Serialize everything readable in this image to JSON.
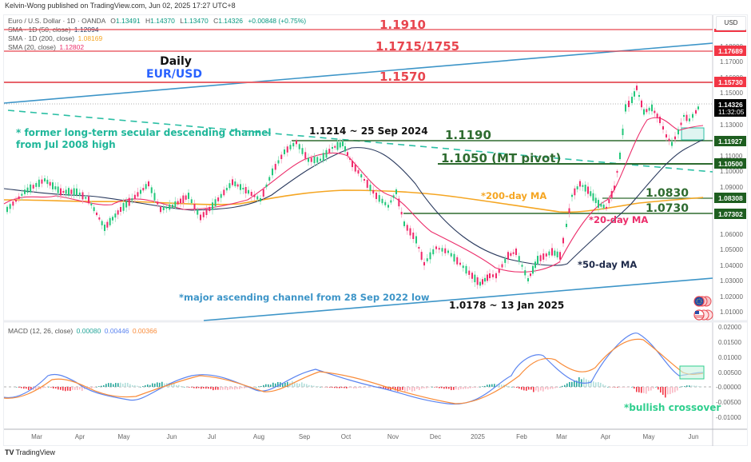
{
  "publisher": "Kelvin-Wong published on TradingView.com, Jun 02, 2025 17:27 UTC+8",
  "symbol": {
    "title": "Euro / U.S. Dollar · 1D · OANDA",
    "open_label": "O",
    "open": "1.13491",
    "high_label": "H",
    "high": "1.14370",
    "low_label": "L",
    "low": "1.13470",
    "close_label": "C",
    "close": "1.14326",
    "change": "+0.00848 (+0.75%)"
  },
  "indicators": [
    {
      "label": "SMA · 1D (50, close)",
      "value": "1.12094",
      "color": "#2a3a5e"
    },
    {
      "label": "SMA · 1D (200, close)",
      "value": "1.08169",
      "color": "#f5a623"
    },
    {
      "label": "SMA (20, close)",
      "value": "1.12802",
      "color": "#ec2e6b"
    }
  ],
  "macd_legend": {
    "label": "MACD (12, 26, close)",
    "hist": "0.00080",
    "macd": "0.00446",
    "signal": "0.00366"
  },
  "currency": "USD",
  "price_axis": [
    "1.18000",
    "1.17000",
    "1.16000",
    "1.15000",
    "1.13000",
    "1.11000",
    "1.10000",
    "1.09000",
    "1.06000",
    "1.05000",
    "1.04000",
    "1.03000",
    "1.02000",
    "1.01000"
  ],
  "price_tags": [
    {
      "value": "1.19100",
      "color": "#f23645"
    },
    {
      "value": "1.17689",
      "color": "#f23645"
    },
    {
      "value": "1.15730",
      "color": "#f23645"
    },
    {
      "value": "1.14326",
      "sub": "11:32:05",
      "color": "#000000"
    },
    {
      "value": "1.11927",
      "color": "#1e5e20"
    },
    {
      "value": "1.10500",
      "color": "#1e5e20"
    },
    {
      "value": "1.08308",
      "color": "#1e5e20"
    },
    {
      "value": "1.07302",
      "color": "#1e5e20"
    }
  ],
  "macd_axis": [
    "0.02000",
    "0.01500",
    "0.01000",
    "0.00500",
    "-0.00000",
    "-0.00500",
    "-0.01000"
  ],
  "time_axis": [
    "Mar",
    "Apr",
    "May",
    "Jun",
    "Jul",
    "Aug",
    "Sep",
    "Oct",
    "Nov",
    "Dec",
    "2025",
    "Feb",
    "Mar",
    "Apr",
    "May",
    "Jun"
  ],
  "annotations": {
    "timeframe": "Daily",
    "pair": "EUR/USD",
    "r1910": "1.1910",
    "r1715": "1.1715/1755",
    "r1570": "1.1570",
    "s1190": "1.1190",
    "s1050": "1.1050 (MT pivot)",
    "s0830": "1.0830",
    "s0730": "1.0730",
    "sep_high": "1.1214 ~ 25 Sep 2024",
    "jan_low": "1.0178 ~ 13 Jan 2025",
    "desc_channel_1": "* former long-term secular descending channel",
    "desc_channel_2": "from Jul 2008  high",
    "asc_channel": "*major ascending channel from 28 Sep 2022 low",
    "ma200": "*200-day MA",
    "ma20": "*20-day MA",
    "ma50": "*50-day MA",
    "bullish": "*bullish crossover"
  },
  "brand": "TradingView",
  "colors": {
    "up": "#22c77a",
    "down": "#f0286a",
    "resistance": "#e8464f",
    "support": "#2e6b2f",
    "channel_asc": "#3d95c8",
    "channel_desc": "#2bbfa4",
    "ma20": "#ec2e6b",
    "ma50": "#2a3a5e",
    "ma200": "#f5a623",
    "macd": "#5b84f0",
    "signal": "#f98c3a"
  },
  "chart_data": {
    "type": "candlestick",
    "title": "Euro / U.S. Dollar · 1D · OANDA",
    "xlabel": "",
    "ylabel": "USD",
    "ylim": [
      1.005,
      1.195
    ],
    "x": [
      "Mar 2024",
      "Apr 2024",
      "May 2024",
      "Jun 2024",
      "Jul 2024",
      "Aug 2024",
      "Sep 2024",
      "Oct 2024",
      "Nov 2024",
      "Dec 2024",
      "Jan 2025",
      "Feb 2025",
      "Mar 2025",
      "Apr 2025",
      "May 2025",
      "Jun 2025"
    ],
    "series": [
      {
        "name": "EUR/USD close (approx monthly)",
        "values": [
          1.085,
          1.072,
          1.08,
          1.072,
          1.083,
          1.105,
          1.115,
          1.088,
          1.058,
          1.04,
          1.03,
          1.04,
          1.08,
          1.13,
          1.128,
          1.143
        ]
      },
      {
        "name": "SMA 20",
        "values": [
          1.085,
          1.075,
          1.076,
          1.074,
          1.083,
          1.098,
          1.11,
          1.1,
          1.068,
          1.05,
          1.038,
          1.04,
          1.07,
          1.115,
          1.128,
          1.128
        ]
      },
      {
        "name": "SMA 50",
        "values": [
          1.087,
          1.081,
          1.077,
          1.078,
          1.078,
          1.09,
          1.105,
          1.11,
          1.09,
          1.065,
          1.045,
          1.038,
          1.04,
          1.085,
          1.11,
          1.121
        ]
      },
      {
        "name": "SMA 200",
        "values": [
          1.083,
          1.083,
          1.081,
          1.08,
          1.08,
          1.082,
          1.086,
          1.087,
          1.086,
          1.083,
          1.079,
          1.074,
          1.073,
          1.077,
          1.08,
          1.082
        ]
      }
    ],
    "horizontal_levels": [
      {
        "value": 1.191,
        "label": "1.1910",
        "type": "resistance"
      },
      {
        "value": 1.1715,
        "label": "1.1715/1755",
        "type": "resistance"
      },
      {
        "value": 1.157,
        "label": "1.1570",
        "type": "resistance"
      },
      {
        "value": 1.119,
        "label": "1.1190",
        "type": "support"
      },
      {
        "value": 1.105,
        "label": "1.1050 (MT pivot)",
        "type": "support"
      },
      {
        "value": 1.083,
        "label": "1.0830",
        "type": "support"
      },
      {
        "value": 1.073,
        "label": "1.0730",
        "type": "support"
      }
    ],
    "last": {
      "open": 1.13491,
      "high": 1.1437,
      "low": 1.1347,
      "close": 1.14326,
      "change": 0.00848,
      "change_pct": 0.75
    },
    "macd": {
      "params": "12, 26, close",
      "ylim": [
        -0.012,
        0.022
      ],
      "macd_values": [
        -0.001,
        0.002,
        -0.002,
        -0.004,
        0.004,
        0.004,
        0.0,
        0.003,
        0.006,
        -0.004,
        -0.008,
        -0.003,
        0.01,
        0.018,
        0.002,
        0.00446
      ],
      "signal_values": [
        0.0,
        0.001,
        -0.001,
        -0.003,
        0.002,
        0.004,
        0.0,
        0.002,
        0.005,
        -0.002,
        -0.006,
        -0.003,
        0.008,
        0.016,
        0.004,
        0.00366
      ],
      "histogram_last": 0.0008
    },
    "legend_position": "top-left",
    "grid": false
  }
}
